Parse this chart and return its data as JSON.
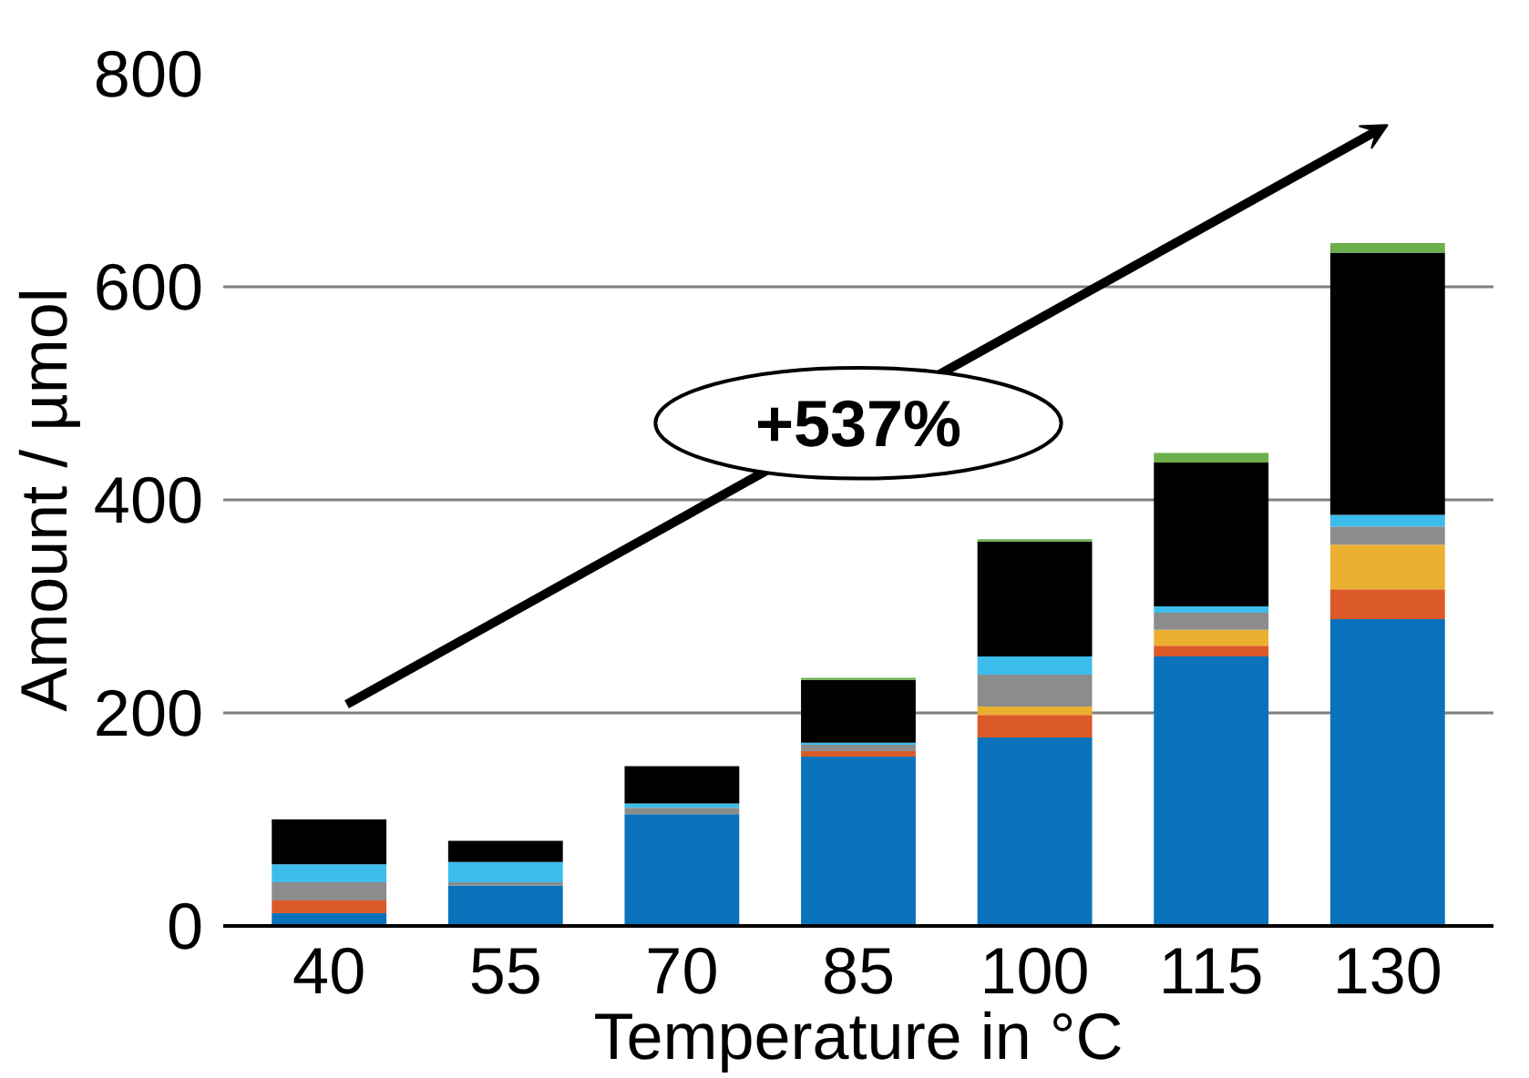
{
  "chart_data": {
    "type": "bar",
    "stacked": true,
    "xlabel": "Temperature in °C",
    "ylabel": "Amount / µmol",
    "categories": [
      "40",
      "55",
      "70",
      "85",
      "100",
      "115",
      "130"
    ],
    "series": [
      {
        "color": "#0a72bb",
        "values": [
          12,
          38,
          105,
          159,
          177,
          253,
          288
        ]
      },
      {
        "color": "#dc5a27",
        "values": [
          12,
          0,
          0,
          5,
          21,
          10,
          28
        ]
      },
      {
        "color": "#ebb030",
        "values": [
          0,
          0,
          0,
          0,
          8,
          15,
          42
        ]
      },
      {
        "color": "#8c8c8c",
        "values": [
          17,
          3,
          6,
          6,
          30,
          16,
          17
        ]
      },
      {
        "color": "#3dbdec",
        "values": [
          17,
          19,
          4,
          2,
          17,
          6,
          11
        ]
      },
      {
        "color": "#000000",
        "values": [
          42,
          20,
          35,
          59,
          108,
          135,
          246
        ]
      },
      {
        "color": "#6ab04c",
        "values": [
          0,
          0,
          0,
          2,
          2,
          9,
          9
        ]
      }
    ],
    "ylim": [
      0,
      800
    ],
    "yticks": [
      0,
      200,
      400,
      600,
      800
    ],
    "grid": "y",
    "annotations": [
      "+537%"
    ]
  }
}
